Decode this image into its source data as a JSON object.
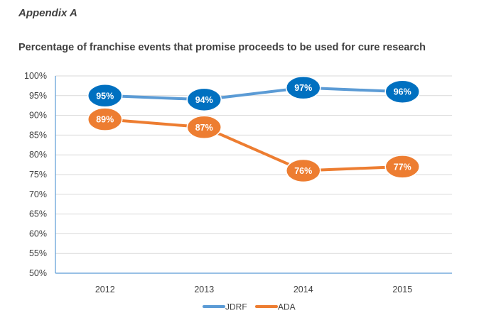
{
  "header": {
    "appendix": "Appendix A"
  },
  "chart_data": {
    "type": "line",
    "title": "Percentage of franchise events that promise proceeds to be used for cure research",
    "categories": [
      "2012",
      "2013",
      "2014",
      "2015"
    ],
    "series": [
      {
        "name": "JDRF",
        "values": [
          95,
          94,
          97,
          96
        ],
        "labels": [
          "95%",
          "94%",
          "97%",
          "96%"
        ],
        "line_color": "#5B9BD5",
        "marker_color": "#0070C0"
      },
      {
        "name": "ADA",
        "values": [
          89,
          87,
          76,
          77
        ],
        "labels": [
          "89%",
          "87%",
          "76%",
          "77%"
        ],
        "line_color": "#ED7D31",
        "marker_color": "#ED7D31"
      }
    ],
    "ylim": [
      50,
      100
    ],
    "yticks": [
      100,
      95,
      90,
      85,
      80,
      75,
      70,
      65,
      60,
      55,
      50
    ],
    "ytick_labels": [
      "100%",
      "95%",
      "90%",
      "85%",
      "80%",
      "75%",
      "70%",
      "65%",
      "60%",
      "55%",
      "50%"
    ],
    "grid": true,
    "legend": "bottom"
  }
}
